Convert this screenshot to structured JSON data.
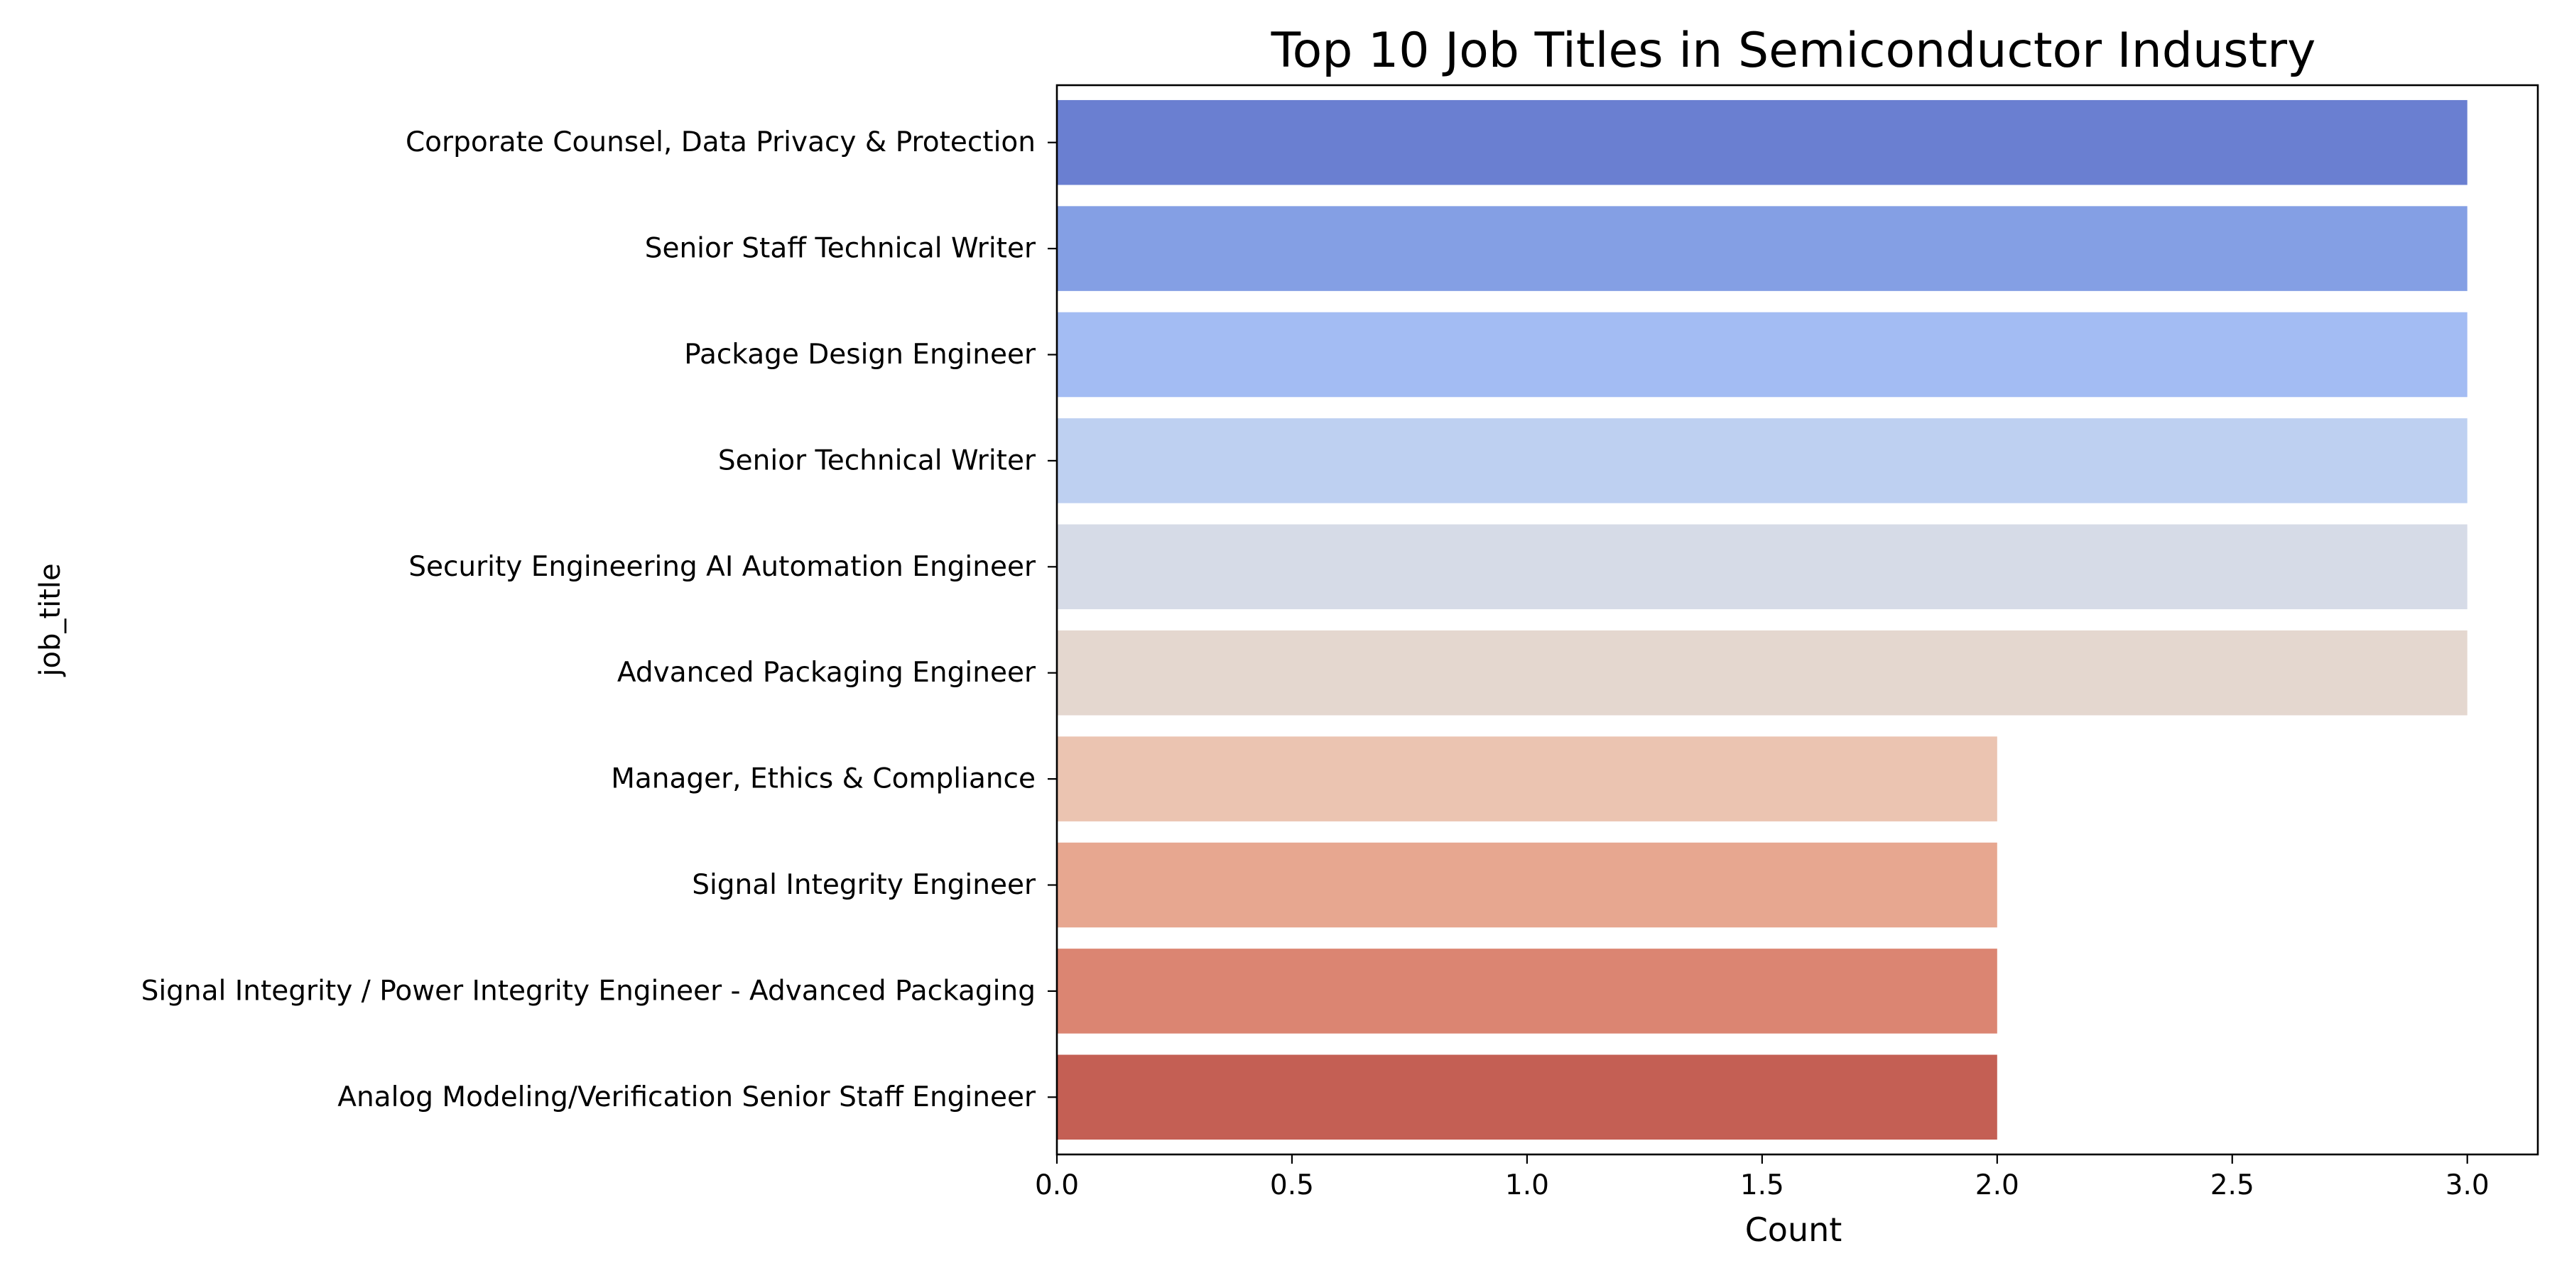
{
  "chart_data": {
    "type": "bar",
    "orientation": "horizontal",
    "title": "Top 10 Job Titles in Semiconductor Industry",
    "xlabel": "Count",
    "ylabel": "job_title",
    "xlim": [
      0,
      3.15
    ],
    "xticks": [
      "0.0",
      "0.5",
      "1.0",
      "1.5",
      "2.0",
      "2.5",
      "3.0"
    ],
    "xtick_values": [
      0,
      0.5,
      1.0,
      1.5,
      2.0,
      2.5,
      3.0
    ],
    "grid": false,
    "legend": "none",
    "categories": [
      "Corporate Counsel, Data Privacy & Protection",
      "Senior Staff Technical Writer",
      "Package Design Engineer",
      "Senior Technical Writer",
      "Security Engineering AI Automation Engineer",
      "Advanced Packaging Engineer",
      "Manager, Ethics & Compliance",
      "Signal Integrity Engineer",
      "Signal Integrity / Power Integrity Engineer - Advanced Packaging",
      "Analog Modeling/Verification Senior Staff Engineer"
    ],
    "values": [
      3,
      3,
      3,
      3,
      3,
      3,
      2,
      2,
      2,
      2
    ],
    "colors": [
      "#6a7fd1",
      "#849fe4",
      "#a3bcf3",
      "#bed0f1",
      "#d6dbe7",
      "#e4d7cf",
      "#ebc4b1",
      "#e7a790",
      "#db8572",
      "#c45f54"
    ]
  }
}
